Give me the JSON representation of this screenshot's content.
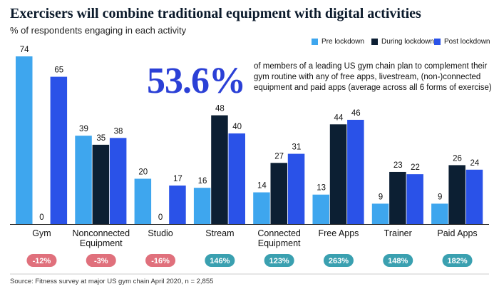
{
  "title": "Exercisers will combine traditional equipment with digital activities",
  "subtitle": "% of respondents engaging in each activity",
  "legend": [
    {
      "label": "Pre lockdown",
      "color": "#3ea6ee"
    },
    {
      "label": "During lockdown",
      "color": "#0c1f33"
    },
    {
      "label": "Post lockdown",
      "color": "#2a52e8"
    }
  ],
  "callout": {
    "value": "53.6%",
    "text": "of members of a leading US gym chain plan to complement their gym routine with any of free apps, livestream, (non-)connected equipment and paid apps (average across all 6 forms of exercise)"
  },
  "source": "Source: Fitness survey at major US gym chain April 2020, n = 2,855",
  "chart_data": {
    "type": "bar",
    "categories": [
      "Gym",
      "Nonconnected Equipment",
      "Studio",
      "Stream",
      "Connected Equipment",
      "Free Apps",
      "Trainer",
      "Paid Apps"
    ],
    "category_lines": [
      [
        "Gym"
      ],
      [
        "Nonconnected",
        "Equipment"
      ],
      [
        "Studio"
      ],
      [
        "Stream"
      ],
      [
        "Connected",
        "Equipment"
      ],
      [
        "Free Apps"
      ],
      [
        "Trainer"
      ],
      [
        "Paid Apps"
      ]
    ],
    "series": [
      {
        "name": "Pre lockdown",
        "values": [
          74,
          39,
          20,
          16,
          14,
          13,
          9,
          9
        ]
      },
      {
        "name": "During lockdown",
        "values": [
          0,
          35,
          0,
          48,
          27,
          44,
          23,
          26
        ]
      },
      {
        "name": "Post lockdown",
        "values": [
          65,
          38,
          17,
          40,
          31,
          46,
          22,
          24
        ]
      }
    ],
    "changes": [
      "-12%",
      "-3%",
      "-16%",
      "146%",
      "123%",
      "263%",
      "148%",
      "182%"
    ],
    "change_colors": {
      "negative": "#e0707c",
      "positive": "#3aa0b0"
    },
    "ylim": [
      0,
      74
    ],
    "xlabel": "",
    "ylabel": ""
  }
}
